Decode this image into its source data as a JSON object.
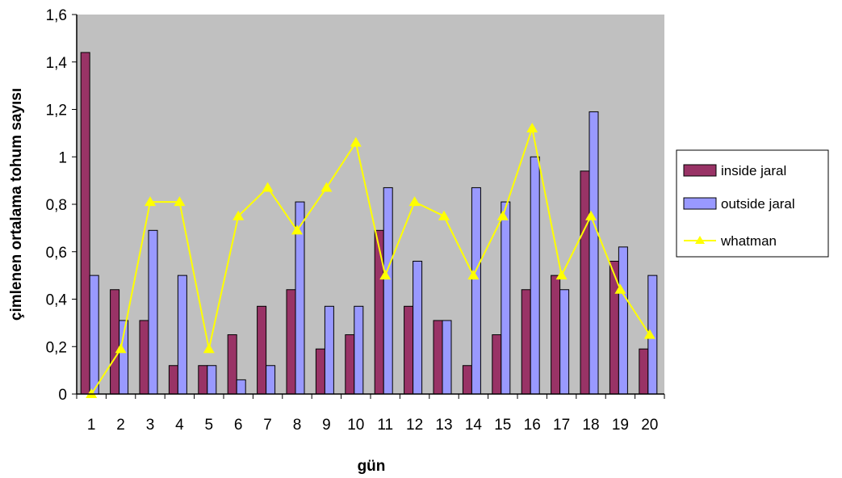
{
  "chart_data": {
    "type": "bar",
    "xlabel": "gün",
    "ylabel": "çimlenen ortalama tohum sayısı",
    "ylim": [
      0,
      1.6
    ],
    "yticks": [
      "0",
      "0,2",
      "0,4",
      "0,6",
      "0,8",
      "1",
      "1,2",
      "1,4",
      "1,6"
    ],
    "categories": [
      "1",
      "2",
      "3",
      "4",
      "5",
      "6",
      "7",
      "8",
      "9",
      "10",
      "11",
      "12",
      "13",
      "14",
      "15",
      "16",
      "17",
      "18",
      "19",
      "20"
    ],
    "plot_background": "#c0c0c0",
    "grid": false,
    "legend_position": "right",
    "series": [
      {
        "name": "inside jaral",
        "kind": "bar",
        "color": "#993366",
        "values": [
          1.44,
          0.44,
          0.31,
          0.12,
          0.12,
          0.25,
          0.37,
          0.44,
          0.19,
          0.25,
          0.69,
          0.37,
          0.31,
          0.12,
          0.25,
          0.44,
          0.5,
          0.94,
          0.56,
          0.19
        ]
      },
      {
        "name": "outside jaral",
        "kind": "bar",
        "color": "#9999ff",
        "values": [
          0.5,
          0.31,
          0.69,
          0.5,
          0.12,
          0.06,
          0.12,
          0.81,
          0.37,
          0.37,
          0.87,
          0.56,
          0.31,
          0.87,
          0.81,
          1.0,
          0.44,
          1.19,
          0.62,
          0.5
        ]
      },
      {
        "name": "whatman",
        "kind": "line",
        "color": "#ffff00",
        "marker": "triangle",
        "values": [
          0.0,
          0.19,
          0.81,
          0.81,
          0.19,
          0.75,
          0.87,
          0.69,
          0.87,
          1.06,
          0.5,
          0.81,
          0.75,
          0.5,
          0.75,
          1.12,
          0.5,
          0.75,
          0.44,
          0.25
        ]
      }
    ]
  }
}
